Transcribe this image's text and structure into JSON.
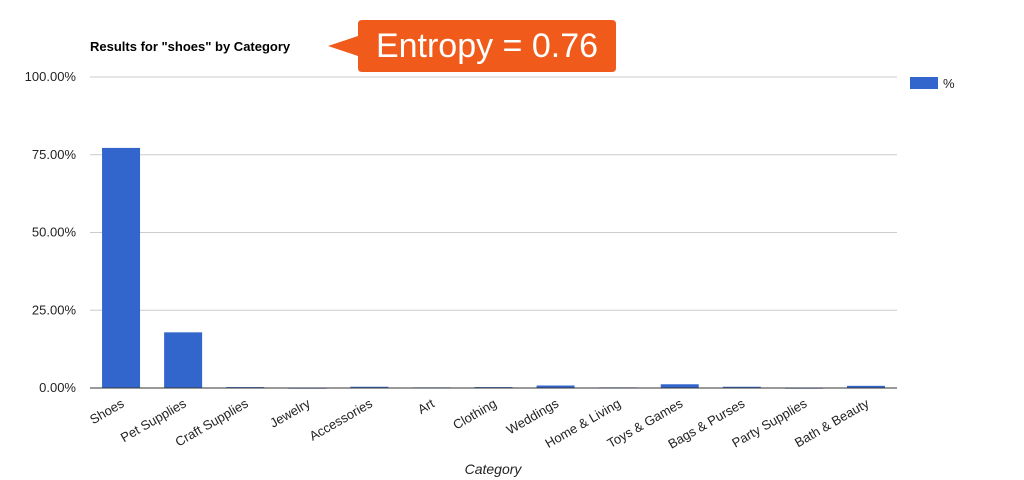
{
  "chart_data": {
    "type": "bar",
    "title": "Results for \"shoes\" by Category",
    "xlabel": "Category",
    "ylabel": "",
    "ylim": [
      0,
      100
    ],
    "yticks": [
      "0.00%",
      "25.00%",
      "50.00%",
      "75.00%",
      "100.00%"
    ],
    "grid": true,
    "legend_position": "right",
    "categories": [
      "Shoes",
      "Pet Supplies",
      "Craft Supplies",
      "Jewelry",
      "Accessories",
      "Art",
      "Clothing",
      "Weddings",
      "Home & Living",
      "Toys & Games",
      "Bags & Purses",
      "Party Supplies",
      "Bath & Beauty"
    ],
    "series": [
      {
        "name": "%",
        "color": "#3366cc",
        "values": [
          77.2,
          17.9,
          0.3,
          0.1,
          0.4,
          0.2,
          0.3,
          0.8,
          0.2,
          1.2,
          0.4,
          0.1,
          0.7
        ]
      }
    ]
  },
  "annotation": {
    "text": "Entropy = 0.76",
    "color": "#f05a1a"
  }
}
